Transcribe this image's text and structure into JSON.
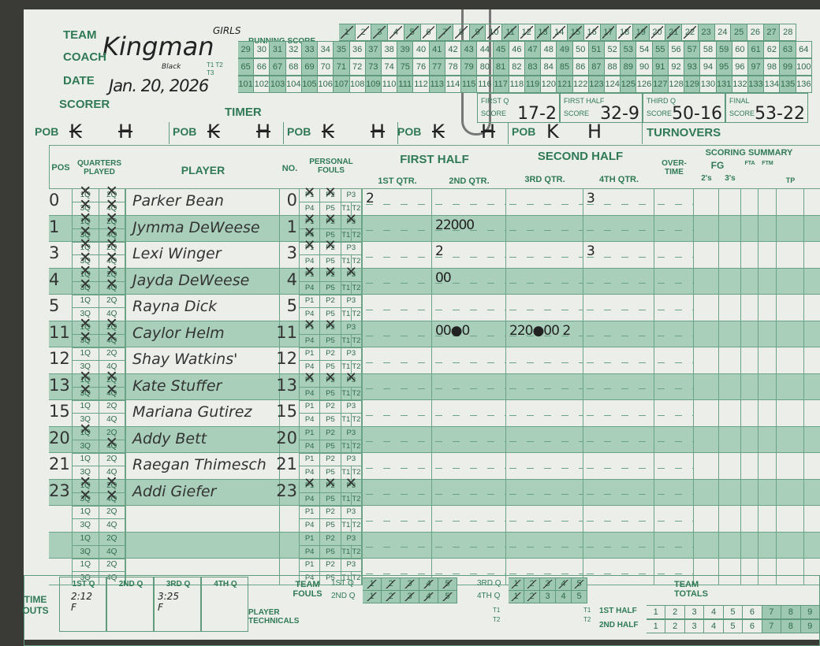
{
  "header": {
    "team_label": "TEAM",
    "team": "Kingman",
    "team_note": "GIRLS",
    "coach_label": "COACH",
    "coach_note": "Black",
    "date_label": "DATE",
    "date": "Jan. 20, 2026",
    "scorer_label": "SCORER",
    "timer_label": "TIMER",
    "t_labels": [
      "T1",
      "T2",
      "T3"
    ]
  },
  "running_score": {
    "label": "RUNNING SCORE",
    "crossed_through": 22,
    "rows": [
      [
        1,
        28
      ],
      [
        29,
        64
      ],
      [
        65,
        100
      ],
      [
        101,
        136
      ]
    ]
  },
  "quarter_scores": [
    {
      "label1": "FIRST Q",
      "label2": "SCORE",
      "value": "17-2"
    },
    {
      "label1": "FIRST HALF",
      "label2": "SCORE",
      "value": "32-9"
    },
    {
      "label1": "THIRD Q",
      "label2": "SCORE",
      "value": "50-16"
    },
    {
      "label1": "FINAL",
      "label2": "SCORE",
      "value": "53-22"
    }
  ],
  "pob": {
    "label": "POB",
    "entries": [
      {
        "a": "K",
        "b": "H",
        "crossed": true
      },
      {
        "a": "K",
        "b": "H",
        "crossed": true
      },
      {
        "a": "K",
        "b": "H",
        "crossed": true
      },
      {
        "a": "K",
        "b": "H",
        "crossed": true
      },
      {
        "a": "K",
        "b": "H",
        "crossed": false
      }
    ],
    "turnovers_label": "TURNOVERS"
  },
  "columns": {
    "pos": "POS",
    "quarters": "QUARTERS PLAYED",
    "player": "PLAYER",
    "no": "NO.",
    "fouls": "PERSONAL FOULS",
    "first_half": "FIRST HALF",
    "second_half": "SECOND HALF",
    "q1": "1ST QTR.",
    "q2": "2ND QTR.",
    "q3": "3RD QTR.",
    "q4": "4TH QTR.",
    "overtime": "OVER-TIME",
    "summary": "SCORING SUMMARY",
    "fg": "FG",
    "twos": "2's",
    "threes": "3's",
    "fta": "FTA",
    "ftm": "FTM",
    "tp": "TP"
  },
  "quarter_cells": [
    "1Q",
    "2Q",
    "3Q",
    "4Q"
  ],
  "foul_cells": [
    "P1",
    "P2",
    "P3",
    "P4",
    "P5",
    "T1",
    "T2"
  ],
  "players": [
    {
      "pos": "0",
      "name": "Parker Bean",
      "no": "0",
      "quarters_marked": [
        1,
        2,
        3,
        4
      ],
      "fouls": 2,
      "q1": "2",
      "q2": "",
      "q3": "",
      "q4": "3"
    },
    {
      "pos": "1",
      "name": "Jymma DeWeese",
      "no": "1",
      "quarters_marked": [
        1,
        2,
        3,
        4
      ],
      "fouls": 4,
      "q1": "",
      "q2": "22000",
      "q3": "",
      "q4": ""
    },
    {
      "pos": "3",
      "name": "Lexi Winger",
      "no": "3",
      "quarters_marked": [
        1,
        2,
        3,
        4
      ],
      "fouls": 2,
      "q1": "",
      "q2": "2",
      "q3": "",
      "q4": "3"
    },
    {
      "pos": "4",
      "name": "Jayda DeWeese",
      "no": "4",
      "quarters_marked": [
        1,
        2,
        3,
        4
      ],
      "fouls": 3,
      "q1": "",
      "q2": "00",
      "q3": "",
      "q4": ""
    },
    {
      "pos": "5",
      "name": "Rayna Dick",
      "no": "5",
      "quarters_marked": [],
      "fouls": 0,
      "q1": "",
      "q2": "",
      "q3": "",
      "q4": ""
    },
    {
      "pos": "11",
      "name": "Caylor Helm",
      "no": "11",
      "quarters_marked": [
        1,
        2,
        3,
        4
      ],
      "fouls": 2,
      "q1": "",
      "q2": "00●0",
      "q3": "220●00 2",
      "q4": ""
    },
    {
      "pos": "12",
      "name": "Shay Watkins'",
      "no": "12",
      "quarters_marked": [],
      "fouls": 0,
      "q1": "",
      "q2": "",
      "q3": "",
      "q4": ""
    },
    {
      "pos": "13",
      "name": "Kate Stuffer",
      "no": "13",
      "quarters_marked": [
        1,
        2,
        3,
        4
      ],
      "fouls": 3,
      "q1": "",
      "q2": "",
      "q3": "",
      "q4": ""
    },
    {
      "pos": "15",
      "name": "Mariana Gutirez",
      "no": "15",
      "quarters_marked": [],
      "fouls": 0,
      "q1": "",
      "q2": "",
      "q3": "",
      "q4": ""
    },
    {
      "pos": "20",
      "name": "Addy Bett",
      "no": "20",
      "quarters_marked": [
        1,
        4
      ],
      "fouls": 0,
      "q1": "",
      "q2": "",
      "q3": "",
      "q4": ""
    },
    {
      "pos": "21",
      "name": "Raegan Thimesch",
      "no": "21",
      "quarters_marked": [],
      "fouls": 0,
      "q1": "",
      "q2": "",
      "q3": "",
      "q4": ""
    },
    {
      "pos": "23",
      "name": "Addi Giefer",
      "no": "23",
      "quarters_marked": [
        1,
        2,
        3,
        4
      ],
      "fouls": 3,
      "q1": "",
      "q2": "",
      "q3": "",
      "q4": ""
    },
    {
      "pos": "",
      "name": "",
      "no": "",
      "quarters_marked": [],
      "fouls": 0,
      "q1": "",
      "q2": "",
      "q3": "",
      "q4": ""
    },
    {
      "pos": "",
      "name": "",
      "no": "",
      "quarters_marked": [],
      "fouls": 0,
      "q1": "",
      "q2": "",
      "q3": "",
      "q4": ""
    },
    {
      "pos": "",
      "name": "",
      "no": "",
      "quarters_marked": [],
      "fouls": 0,
      "q1": "",
      "q2": "",
      "q3": "",
      "q4": ""
    }
  ],
  "footer": {
    "time_outs_label": "TIME OUTS",
    "to_quarters": [
      "1ST Q",
      "2ND Q",
      "3RD Q",
      "4TH Q"
    ],
    "time_outs": {
      "q1": "2:12 F",
      "q3": "3:25 F"
    },
    "team_fouls_label": "TEAM FOULS",
    "team_fouls": [
      {
        "q": "1ST Q",
        "crossed": 5
      },
      {
        "q": "2ND Q",
        "crossed": 5
      },
      {
        "q": "3RD Q",
        "crossed": 5
      },
      {
        "q": "4TH Q",
        "crossed": 2
      }
    ],
    "player_technicals_label": "PLAYER TECHNICALS",
    "t_labels": [
      "T1",
      "T2"
    ],
    "team_totals_label": "TEAM TOTALS",
    "halves": [
      "1ST HALF",
      "2ND HALF"
    ]
  }
}
